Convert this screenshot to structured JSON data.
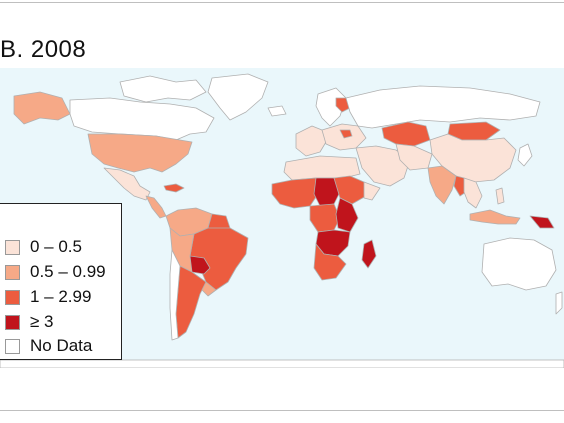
{
  "title": "B. 2008",
  "colors": {
    "ocean": "#eaf7fb",
    "border": "#b0b0b0",
    "c0": "#fbe3d8",
    "c1": "#f6a987",
    "c2": "#ec5c3f",
    "c3": "#c0141c",
    "nodata": "#ffffff"
  },
  "legend": {
    "items": [
      {
        "label": "0 – 0.5",
        "color": "#fbe3d8"
      },
      {
        "label": "0.5 – 0.99",
        "color": "#f6a987"
      },
      {
        "label": "1 – 2.99",
        "color": "#ec5c3f"
      },
      {
        "label": "≥ 3",
        "color": "#c0141c"
      },
      {
        "label": "No Data",
        "color": "#ffffff"
      }
    ]
  }
}
